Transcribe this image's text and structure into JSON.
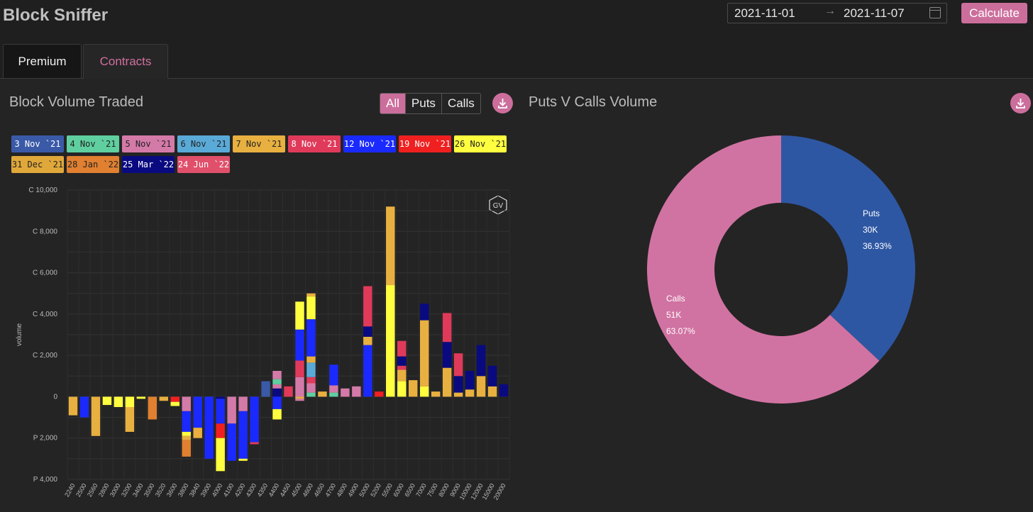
{
  "app": {
    "title": "Block Sniffer"
  },
  "date_range": {
    "start": "2021-11-01",
    "separator": "→",
    "end": "2021-11-07"
  },
  "calculate_label": "Calculate",
  "tabs": [
    {
      "label": "Premium"
    },
    {
      "label": "Contracts"
    }
  ],
  "left_panel": {
    "title": "Block Volume Traded",
    "filters": [
      {
        "label": "All",
        "active": true
      },
      {
        "label": "Puts"
      },
      {
        "label": "Calls"
      }
    ],
    "download_icon": "download-icon",
    "badge": "GV"
  },
  "right_panel": {
    "title": "Puts V Calls Volume",
    "download_icon": "download-icon"
  },
  "legend": [
    {
      "label": "3 Nov `21",
      "color": "#3a5aa8",
      "text": "#fff"
    },
    {
      "label": "4 Nov `21",
      "color": "#5fcfa0",
      "text": "#222"
    },
    {
      "label": "5 Nov `21",
      "color": "#d47aa8",
      "text": "#222"
    },
    {
      "label": "6 Nov `21",
      "color": "#5aaad8",
      "text": "#222"
    },
    {
      "label": "7 Nov `21",
      "color": "#e8b040",
      "text": "#222"
    },
    {
      "label": "8 Nov `21",
      "color": "#e03a5a",
      "text": "#fff"
    },
    {
      "label": "12 Nov `21",
      "color": "#1a2aff",
      "text": "#fff"
    },
    {
      "label": "19 Nov `21",
      "color": "#f02020",
      "text": "#fff"
    },
    {
      "label": "26 Nov `21",
      "color": "#ffff40",
      "text": "#222"
    },
    {
      "label": "31 Dec `21",
      "color": "#e0a83a",
      "text": "#222"
    },
    {
      "label": "28 Jan `22",
      "color": "#e08030",
      "text": "#222"
    },
    {
      "label": "25 Mar `22",
      "color": "#0a0a80",
      "text": "#fff"
    },
    {
      "label": "24 Jun `22",
      "color": "#e0506a",
      "text": "#fff"
    }
  ],
  "chart_data": [
    {
      "type": "bar",
      "stacked": true,
      "ylabel": "volume",
      "ylim": [
        -4000,
        10000
      ],
      "yticks": [
        {
          "v": 10000,
          "label": "C 10,000"
        },
        {
          "v": 8000,
          "label": "C 8,000"
        },
        {
          "v": 6000,
          "label": "C 6,000"
        },
        {
          "v": 4000,
          "label": "C 4,000"
        },
        {
          "v": 2000,
          "label": "C 2,000"
        },
        {
          "v": 0,
          "label": "0"
        },
        {
          "v": -2000,
          "label": "P 2,000"
        },
        {
          "v": -4000,
          "label": "P 4,000"
        }
      ],
      "categories": [
        "2240",
        "2500",
        "2560",
        "2800",
        "3000",
        "3200",
        "3400",
        "3500",
        "3520",
        "3600",
        "3800",
        "3840",
        "3900",
        "4000",
        "4100",
        "4200",
        "4300",
        "4350",
        "4400",
        "4450",
        "4500",
        "4600",
        "4650",
        "4700",
        "4800",
        "4900",
        "5000",
        "5200",
        "5500",
        "6000",
        "6500",
        "7000",
        "7500",
        "8000",
        "9000",
        "10000",
        "12000",
        "15000",
        "20000"
      ],
      "stacks": [
        [
          [
            -900,
            "#e8b040"
          ]
        ],
        [
          [
            -1000,
            "#1a2aff"
          ]
        ],
        [
          [
            -1900,
            "#e8b040"
          ]
        ],
        [
          [
            -400,
            "#ffff40"
          ]
        ],
        [
          [
            -500,
            "#ffff40"
          ]
        ],
        [
          [
            -500,
            "#ffff40"
          ],
          [
            -1200,
            "#e8b040"
          ]
        ],
        [
          [
            -100,
            "#ffff40"
          ]
        ],
        [
          [
            -1100,
            "#e08030"
          ]
        ],
        [
          [
            -200,
            "#e8b040"
          ]
        ],
        [
          [
            -250,
            "#f02020"
          ],
          [
            -200,
            "#ffff40"
          ]
        ],
        [
          [
            -700,
            "#d47aa8"
          ],
          [
            -1000,
            "#1a2aff"
          ],
          [
            -200,
            "#ffff40"
          ],
          [
            -200,
            "#e8b040"
          ],
          [
            -800,
            "#e08030"
          ]
        ],
        [
          [
            -1500,
            "#1a2aff"
          ],
          [
            -500,
            "#e8b040"
          ]
        ],
        [
          [
            -3000,
            "#1a2aff"
          ]
        ],
        [
          [
            -100,
            "#0a0a80"
          ],
          [
            -1200,
            "#1a2aff"
          ],
          [
            -700,
            "#f02020"
          ],
          [
            -1600,
            "#ffff40"
          ]
        ],
        [
          [
            -1300,
            "#d47aa8"
          ],
          [
            -1800,
            "#1a2aff"
          ]
        ],
        [
          [
            -700,
            "#d47aa8"
          ],
          [
            -2300,
            "#1a2aff"
          ],
          [
            -100,
            "#ffff40"
          ]
        ],
        [
          [
            -2200,
            "#1a2aff"
          ],
          [
            -100,
            "#e03a5a"
          ]
        ],
        [
          [
            750,
            "#3a5aa8"
          ]
        ],
        [
          [
            400,
            "#0a0a80"
          ],
          [
            200,
            "#d47aa8"
          ],
          [
            250,
            "#5fcfa0"
          ],
          [
            400,
            "#d47aa8"
          ],
          [
            -600,
            "#1a2aff"
          ],
          [
            -500,
            "#ffff40"
          ]
        ],
        [
          [
            500,
            "#e03a5a"
          ]
        ],
        [
          [
            150,
            "#d47aa8"
          ],
          [
            800,
            "#d47aa8"
          ],
          [
            800,
            "#e03a5a"
          ],
          [
            1500,
            "#1a2aff"
          ],
          [
            1350,
            "#ffff40"
          ],
          [
            -100,
            "#e8b040"
          ],
          [
            -100,
            "#d47aa8"
          ]
        ],
        [
          [
            200,
            "#5fcfa0"
          ],
          [
            450,
            "#d47aa8"
          ],
          [
            300,
            "#e03a5a"
          ],
          [
            700,
            "#5aaad8"
          ],
          [
            300,
            "#e8b040"
          ],
          [
            1800,
            "#1a2aff"
          ],
          [
            1100,
            "#ffff40"
          ],
          [
            150,
            "#e8b040"
          ]
        ],
        [
          [
            250,
            "#e8b040"
          ]
        ],
        [
          [
            200,
            "#5fcfa0"
          ],
          [
            350,
            "#d47aa8"
          ],
          [
            1000,
            "#1a2aff"
          ]
        ],
        [
          [
            400,
            "#d47aa8"
          ]
        ],
        [
          [
            500,
            "#d47aa8"
          ]
        ],
        [
          [
            2500,
            "#1a2aff"
          ],
          [
            400,
            "#e8b040"
          ],
          [
            500,
            "#0a0a80"
          ],
          [
            1950,
            "#e03a5a"
          ]
        ],
        [
          [
            250,
            "#f02020"
          ]
        ],
        [
          [
            5400,
            "#ffff40"
          ],
          [
            3800,
            "#e8b040"
          ]
        ],
        [
          [
            750,
            "#ffff40"
          ],
          [
            550,
            "#e8b040"
          ],
          [
            200,
            "#e03a5a"
          ],
          [
            450,
            "#0a0a80"
          ],
          [
            750,
            "#e03a5a"
          ]
        ],
        [
          [
            800,
            "#e8b040"
          ]
        ],
        [
          [
            500,
            "#ffff40"
          ],
          [
            3200,
            "#e8b040"
          ],
          [
            800,
            "#0a0a80"
          ]
        ],
        [
          [
            250,
            "#e8b040"
          ]
        ],
        [
          [
            1400,
            "#e8b040"
          ],
          [
            1250,
            "#0a0a80"
          ],
          [
            1400,
            "#e03a5a"
          ]
        ],
        [
          [
            200,
            "#e8b040"
          ],
          [
            800,
            "#0a0a80"
          ],
          [
            1100,
            "#e03a5a"
          ]
        ],
        [
          [
            350,
            "#e8b040"
          ],
          [
            900,
            "#0a0a80"
          ]
        ],
        [
          [
            1000,
            "#e8b040"
          ],
          [
            1500,
            "#0a0a80"
          ]
        ],
        [
          [
            500,
            "#e8b040"
          ],
          [
            1000,
            "#0a0a80"
          ]
        ],
        [
          [
            600,
            "#0a0a80"
          ]
        ]
      ]
    },
    {
      "type": "pie",
      "donut": true,
      "slices": [
        {
          "label": "Puts",
          "value_label": "30K",
          "percent_label": "36.93%",
          "percent": 36.93,
          "color": "#2e57a3"
        },
        {
          "label": "Calls",
          "value_label": "51K",
          "percent_label": "63.07%",
          "percent": 63.07,
          "color": "#d173a2"
        }
      ]
    }
  ]
}
